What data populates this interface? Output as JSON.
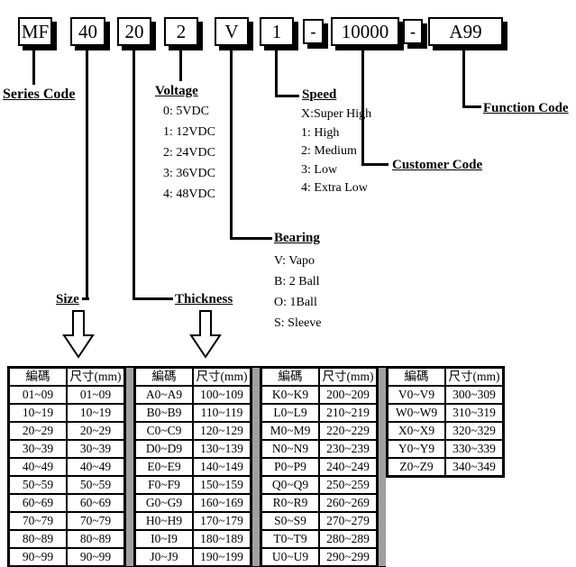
{
  "part_number": {
    "segments": [
      {
        "name": "series",
        "text": "MF"
      },
      {
        "name": "size",
        "text": "40"
      },
      {
        "name": "thickness",
        "text": "20"
      },
      {
        "name": "voltage",
        "text": "2"
      },
      {
        "name": "bearing",
        "text": "V"
      },
      {
        "name": "speed",
        "text": "1"
      },
      {
        "name": "dash1",
        "text": "-"
      },
      {
        "name": "customer_code",
        "text": "10000"
      },
      {
        "name": "dash2",
        "text": "-"
      },
      {
        "name": "function_code",
        "text": "A99"
      }
    ]
  },
  "labels": {
    "series_code": "Series Code",
    "voltage": "Voltage",
    "speed": "Speed",
    "bearing": "Bearing",
    "size": "Size",
    "thickness": "Thickness",
    "customer_code": "Customer Code",
    "function_code": "Function Code"
  },
  "voltage": {
    "options": [
      "0: 5VDC",
      "1: 12VDC",
      "2: 24VDC",
      "3: 36VDC",
      "4: 48VDC"
    ]
  },
  "speed": {
    "options": [
      "X:Super High",
      "1: High",
      "2: Medium",
      "3: Low",
      "4: Extra Low"
    ]
  },
  "bearing": {
    "options": [
      "V: Vapo",
      "B: 2 Ball",
      "O: 1Ball",
      "S: Sleeve"
    ]
  },
  "size_table": {
    "groups": [
      {
        "headers": [
          "編碼",
          "尺寸(mm)"
        ],
        "rows": [
          [
            "01~09",
            "01~09"
          ],
          [
            "10~19",
            "10~19"
          ],
          [
            "20~29",
            "20~29"
          ],
          [
            "30~39",
            "30~39"
          ],
          [
            "40~49",
            "40~49"
          ],
          [
            "50~59",
            "50~59"
          ],
          [
            "60~69",
            "60~69"
          ],
          [
            "70~79",
            "70~79"
          ],
          [
            "80~89",
            "80~89"
          ],
          [
            "90~99",
            "90~99"
          ]
        ]
      },
      {
        "headers": [
          "編碼",
          "尺寸(mm)"
        ],
        "rows": [
          [
            "A0~A9",
            "100~109"
          ],
          [
            "B0~B9",
            "110~119"
          ],
          [
            "C0~C9",
            "120~129"
          ],
          [
            "D0~D9",
            "130~139"
          ],
          [
            "E0~E9",
            "140~149"
          ],
          [
            "F0~F9",
            "150~159"
          ],
          [
            "G0~G9",
            "160~169"
          ],
          [
            "H0~H9",
            "170~179"
          ],
          [
            "I0~I9",
            "180~189"
          ],
          [
            "J0~J9",
            "190~199"
          ]
        ]
      },
      {
        "headers": [
          "編碼",
          "尺寸(mm)"
        ],
        "rows": [
          [
            "K0~K9",
            "200~209"
          ],
          [
            "L0~L9",
            "210~219"
          ],
          [
            "M0~M9",
            "220~229"
          ],
          [
            "N0~N9",
            "230~239"
          ],
          [
            "P0~P9",
            "240~249"
          ],
          [
            "Q0~Q9",
            "250~259"
          ],
          [
            "R0~R9",
            "260~269"
          ],
          [
            "S0~S9",
            "270~279"
          ],
          [
            "T0~T9",
            "280~289"
          ],
          [
            "U0~U9",
            "290~299"
          ]
        ]
      },
      {
        "headers": [
          "編碼",
          "尺寸(mm)"
        ],
        "rows": [
          [
            "V0~V9",
            "300~309"
          ],
          [
            "W0~W9",
            "310~319"
          ],
          [
            "X0~X9",
            "320~329"
          ],
          [
            "Y0~Y9",
            "330~339"
          ],
          [
            "Z0~Z9",
            "340~349"
          ]
        ]
      }
    ]
  },
  "colors": {
    "separator": "#a0a0a0",
    "border": "#000000",
    "text": "#000000"
  }
}
